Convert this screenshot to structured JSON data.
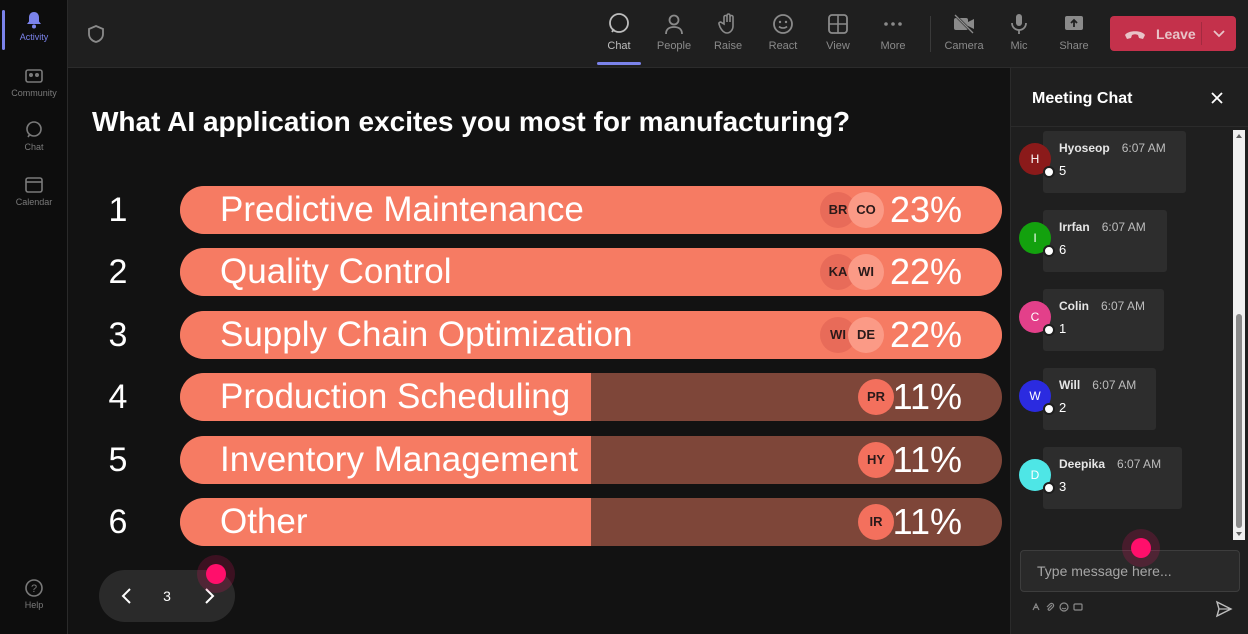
{
  "rail": {
    "items": [
      {
        "label": "Activity"
      },
      {
        "label": "Community"
      },
      {
        "label": "Chat"
      },
      {
        "label": "Calendar"
      }
    ],
    "help": {
      "label": "Help"
    }
  },
  "toolbar": {
    "chat": "Chat",
    "people": "People",
    "raise": "Raise",
    "react": "React",
    "view": "View",
    "more": "More",
    "camera": "Camera",
    "mic": "Mic",
    "share": "Share",
    "leave": "Leave"
  },
  "poll": {
    "question": "What AI application excites you most for manufacturing?",
    "options": [
      {
        "num": "1",
        "label": "Predictive Maintenance",
        "pct": "23%",
        "value": 0.23,
        "avatars": [
          "BR",
          "CO"
        ]
      },
      {
        "num": "2",
        "label": "Quality Control",
        "pct": "22%",
        "value": 0.22,
        "avatars": [
          "KA",
          "WI"
        ]
      },
      {
        "num": "3",
        "label": "Supply Chain Optimization",
        "pct": "22%",
        "value": 0.22,
        "avatars": [
          "WI",
          "DE"
        ]
      },
      {
        "num": "4",
        "label": "Production Scheduling",
        "pct": "11%",
        "value": 0.11,
        "avatars": [
          "PR"
        ]
      },
      {
        "num": "5",
        "label": "Inventory Management",
        "pct": "11%",
        "value": 0.11,
        "avatars": [
          "HY"
        ]
      },
      {
        "num": "6",
        "label": "Other",
        "pct": "11%",
        "value": 0.11,
        "avatars": [
          "IR"
        ]
      }
    ],
    "page": "3"
  },
  "chat": {
    "title": "Meeting Chat",
    "messages": [
      {
        "initial": "H",
        "name": "Hyoseop",
        "time": "6:07 AM",
        "text": "5",
        "color": "#8b1a1a"
      },
      {
        "initial": "I",
        "name": "Irrfan",
        "time": "6:07 AM",
        "text": "6",
        "color": "#13a10e"
      },
      {
        "initial": "C",
        "name": "Colin",
        "time": "6:07 AM",
        "text": "1",
        "color": "#e3408a"
      },
      {
        "initial": "W",
        "name": "Will",
        "time": "6:07 AM",
        "text": "2",
        "color": "#2b2be0"
      },
      {
        "initial": "D",
        "name": "Deepika",
        "time": "6:07 AM",
        "text": "3",
        "color": "#4ee6e6"
      }
    ],
    "input_placeholder": "Type message here..."
  },
  "colors": {
    "bar_fill": "#f67b63",
    "bar_track": "#7e4639",
    "leave": "#c4314b",
    "accent": "#7b83eb",
    "cursor": "#ff0f6b"
  }
}
